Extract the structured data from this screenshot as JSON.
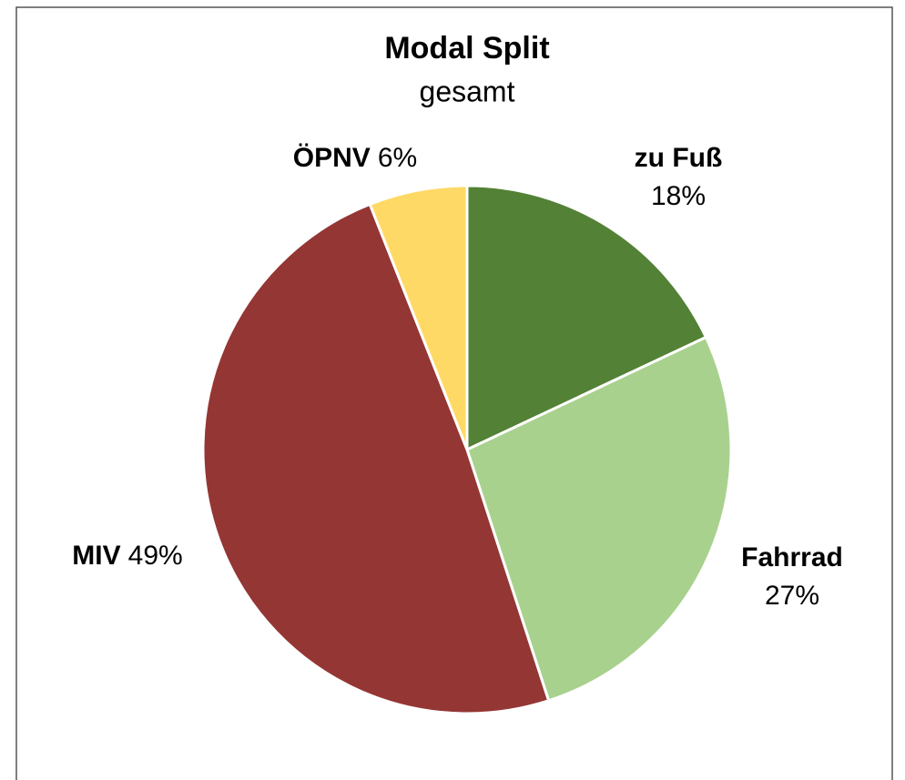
{
  "chart_data": {
    "type": "pie",
    "title": "Modal Split",
    "subtitle": "gesamt",
    "categories": [
      "zu Fuß",
      "Fahrrad",
      "MIV",
      "ÖPNV"
    ],
    "values": [
      18,
      27,
      49,
      6
    ],
    "value_labels": [
      "18%",
      "27%",
      "49%",
      "6%"
    ],
    "colors": [
      "#538135",
      "#a9d18e",
      "#943634",
      "#ffd966"
    ]
  }
}
